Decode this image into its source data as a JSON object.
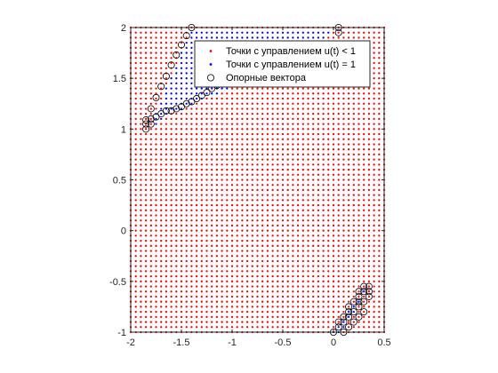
{
  "chart_data": {
    "type": "scatter",
    "title": "",
    "xlabel": "",
    "ylabel": "",
    "xlim": [
      -2,
      0.5
    ],
    "ylim": [
      -1,
      2
    ],
    "x_ticks": [
      "-2",
      "-1.5",
      "-1",
      "-0.5",
      "0",
      "0.5"
    ],
    "y_ticks": [
      "2",
      "1.5",
      "1",
      "0.5",
      "0",
      "-0.5",
      "-1"
    ],
    "grid": {
      "x_start": -2,
      "x_end": 0.5,
      "y_start": -1,
      "y_end": 2,
      "step": 0.05
    },
    "legend_position": "top-right",
    "series": [
      {
        "name": "Точки с управлением u(t) < 1",
        "marker": "dot",
        "color": "#ff0000",
        "description_values": "grid points outside the two regions"
      },
      {
        "name": "Точки с управлением u(t) = 1",
        "marker": "dot",
        "color": "#0000ff",
        "regions": [
          {
            "polygon": [
              [
                -1.82,
                1.0
              ],
              [
                -1.4,
                2.0
              ],
              [
                0.05,
                2.0
              ],
              [
                -0.3,
                1.72
              ],
              [
                -1.6,
                1.15
              ]
            ]
          },
          {
            "polygon": [
              [
                0.3,
                -0.58
              ],
              [
                0.36,
                -0.55
              ],
              [
                0.08,
                -1.0
              ],
              [
                0.0,
                -1.0
              ]
            ]
          }
        ]
      },
      {
        "name": "Опорные вектора",
        "marker": "circle",
        "color": "#000000",
        "points": [
          [
            -1.4,
            2.0
          ],
          [
            -1.45,
            1.92
          ],
          [
            -1.5,
            1.83
          ],
          [
            -1.55,
            1.73
          ],
          [
            -1.6,
            1.63
          ],
          [
            -1.65,
            1.52
          ],
          [
            -1.7,
            1.42
          ],
          [
            -1.75,
            1.31
          ],
          [
            -1.8,
            1.2
          ],
          [
            -1.85,
            1.09
          ],
          [
            -1.85,
            1.05
          ],
          [
            -1.85,
            1.0
          ],
          [
            -1.8,
            1.1
          ],
          [
            -1.8,
            1.05
          ],
          [
            -1.75,
            1.12
          ],
          [
            -1.7,
            1.15
          ],
          [
            -1.65,
            1.18
          ],
          [
            -1.6,
            1.18
          ],
          [
            -1.55,
            1.2
          ],
          [
            -1.5,
            1.22
          ],
          [
            -1.45,
            1.25
          ],
          [
            -1.4,
            1.27
          ],
          [
            -1.35,
            1.3
          ],
          [
            -1.3,
            1.33
          ],
          [
            -1.25,
            1.36
          ],
          [
            -1.2,
            1.4
          ],
          [
            -1.15,
            1.43
          ],
          [
            -1.1,
            1.47
          ],
          [
            -0.5,
            1.7
          ],
          [
            -0.45,
            1.7
          ],
          [
            -0.4,
            1.7
          ],
          [
            -0.35,
            1.72
          ],
          [
            -0.3,
            1.73
          ],
          [
            0.05,
            2.0
          ],
          [
            0.05,
            1.95
          ],
          [
            0.35,
            -0.55
          ],
          [
            0.3,
            -0.55
          ],
          [
            0.3,
            -0.6
          ],
          [
            0.25,
            -0.6
          ],
          [
            0.25,
            -0.65
          ],
          [
            0.2,
            -0.7
          ],
          [
            0.15,
            -0.75
          ],
          [
            0.15,
            -0.8
          ],
          [
            0.1,
            -0.85
          ],
          [
            0.1,
            -0.9
          ],
          [
            0.05,
            -0.95
          ],
          [
            0.0,
            -1.0
          ],
          [
            0.1,
            -1.0
          ],
          [
            0.15,
            -0.95
          ],
          [
            0.2,
            -0.9
          ],
          [
            0.25,
            -0.85
          ],
          [
            0.3,
            -0.8
          ],
          [
            0.25,
            -0.75
          ],
          [
            0.3,
            -0.7
          ],
          [
            0.35,
            -0.65
          ],
          [
            0.2,
            -0.8
          ],
          [
            0.25,
            -0.7
          ],
          [
            0.15,
            -0.85
          ],
          [
            0.35,
            -0.6
          ],
          [
            0.05,
            -0.9
          ]
        ]
      }
    ]
  }
}
